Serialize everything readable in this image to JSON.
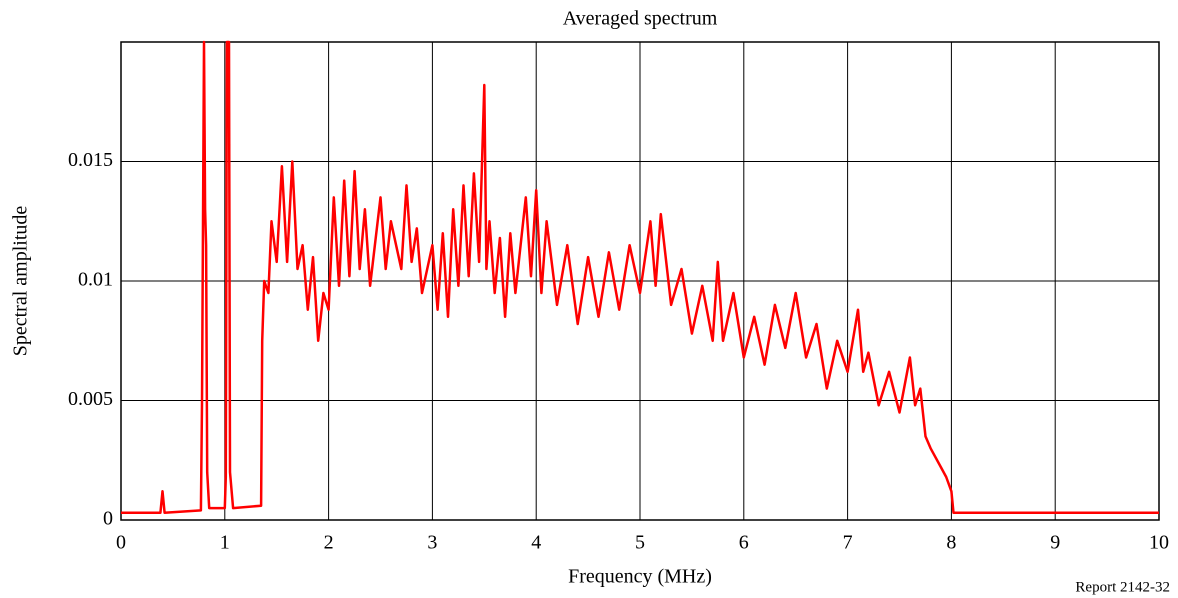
{
  "chart_data": {
    "type": "line",
    "title": "Averaged spectrum",
    "xlabel": "Frequency (MHz)",
    "ylabel": "Spectral amplitude",
    "note": "Report 2142-32",
    "color": "#ff0000",
    "grid": true,
    "xlim": [
      0,
      10
    ],
    "xticks": [
      0,
      1,
      2,
      3,
      4,
      5,
      6,
      7,
      8,
      9,
      10
    ],
    "ylim": [
      0,
      0.02
    ],
    "yticks": [
      0,
      0.005,
      0.01,
      0.015
    ],
    "x": [
      0,
      0.38,
      0.4,
      0.42,
      0.77,
      0.78,
      0.8,
      0.81,
      0.82,
      0.83,
      0.85,
      1.0,
      1.01,
      1.02,
      1.04,
      1.05,
      1.08,
      1.35,
      1.36,
      1.38,
      1.42,
      1.45,
      1.5,
      1.55,
      1.6,
      1.65,
      1.7,
      1.75,
      1.8,
      1.85,
      1.9,
      1.95,
      2.0,
      2.05,
      2.1,
      2.15,
      2.2,
      2.25,
      2.3,
      2.35,
      2.4,
      2.5,
      2.55,
      2.6,
      2.7,
      2.75,
      2.8,
      2.85,
      2.9,
      3.0,
      3.05,
      3.1,
      3.15,
      3.2,
      3.25,
      3.3,
      3.35,
      3.4,
      3.45,
      3.5,
      3.52,
      3.55,
      3.6,
      3.65,
      3.7,
      3.75,
      3.8,
      3.9,
      3.95,
      4.0,
      4.05,
      4.1,
      4.2,
      4.3,
      4.4,
      4.5,
      4.6,
      4.7,
      4.8,
      4.9,
      5.0,
      5.1,
      5.15,
      5.2,
      5.3,
      5.4,
      5.5,
      5.6,
      5.7,
      5.75,
      5.8,
      5.9,
      6.0,
      6.1,
      6.2,
      6.3,
      6.4,
      6.5,
      6.6,
      6.7,
      6.8,
      6.9,
      7.0,
      7.1,
      7.15,
      7.2,
      7.3,
      7.4,
      7.5,
      7.6,
      7.65,
      7.7,
      7.75,
      7.8,
      7.9,
      7.95,
      8.0,
      8.02,
      10
    ],
    "values": [
      0.0003,
      0.0003,
      0.0012,
      0.0003,
      0.0004,
      0.0049,
      0.02,
      0.013,
      0.0115,
      0.002,
      0.0005,
      0.0005,
      0.0018,
      0.02,
      0.02,
      0.002,
      0.0005,
      0.0006,
      0.0075,
      0.01,
      0.0095,
      0.0125,
      0.0108,
      0.0148,
      0.0108,
      0.015,
      0.0105,
      0.0115,
      0.0088,
      0.011,
      0.0075,
      0.0095,
      0.0088,
      0.0135,
      0.0098,
      0.0142,
      0.0102,
      0.0146,
      0.0105,
      0.013,
      0.0098,
      0.0135,
      0.0105,
      0.0125,
      0.0105,
      0.014,
      0.0108,
      0.0122,
      0.0095,
      0.0115,
      0.0088,
      0.012,
      0.0085,
      0.013,
      0.0098,
      0.014,
      0.0102,
      0.0145,
      0.0108,
      0.0182,
      0.0105,
      0.0125,
      0.0095,
      0.0118,
      0.0085,
      0.012,
      0.0095,
      0.0135,
      0.0102,
      0.0138,
      0.0095,
      0.0125,
      0.009,
      0.0115,
      0.0082,
      0.011,
      0.0085,
      0.0112,
      0.0088,
      0.0115,
      0.0095,
      0.0125,
      0.0098,
      0.0128,
      0.009,
      0.0105,
      0.0078,
      0.0098,
      0.0075,
      0.0108,
      0.0075,
      0.0095,
      0.0068,
      0.0085,
      0.0065,
      0.009,
      0.0072,
      0.0095,
      0.0068,
      0.0082,
      0.0055,
      0.0075,
      0.0062,
      0.0088,
      0.0062,
      0.007,
      0.0048,
      0.0062,
      0.0045,
      0.0068,
      0.0048,
      0.0055,
      0.0035,
      0.003,
      0.0022,
      0.0018,
      0.0012,
      0.0003,
      0.0003
    ]
  }
}
